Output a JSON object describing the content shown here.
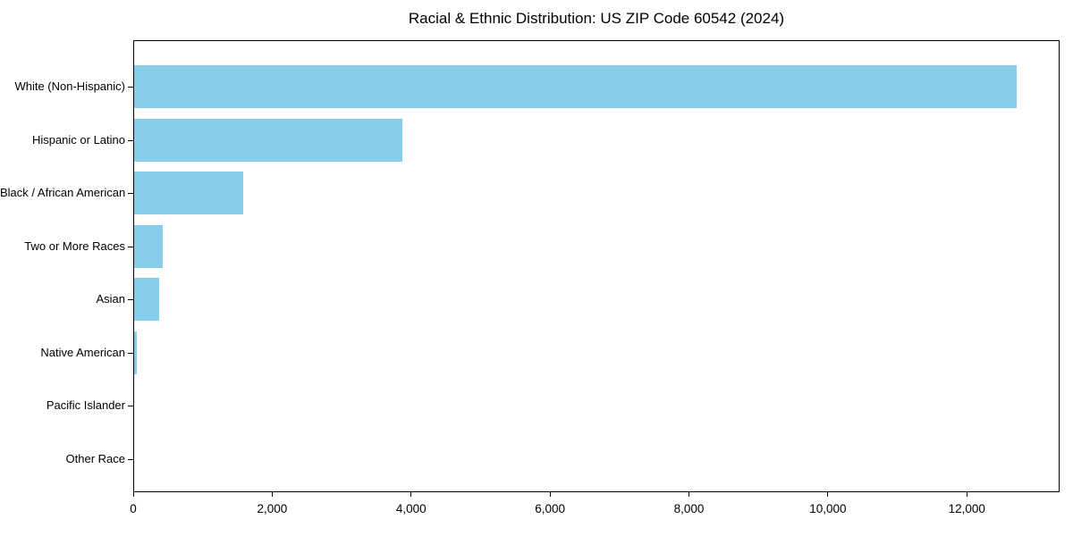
{
  "chart_data": {
    "type": "bar",
    "orientation": "horizontal",
    "title": "Racial & Ethnic Distribution: US ZIP Code 60542 (2024)",
    "xlabel": "",
    "ylabel": "",
    "categories": [
      "White (Non-Hispanic)",
      "Hispanic or Latino",
      "Black / African American",
      "Two or More Races",
      "Asian",
      "Native American",
      "Pacific Islander",
      "Other Race"
    ],
    "values": [
      12700,
      3860,
      1570,
      410,
      355,
      40,
      0,
      0
    ],
    "xlim": [
      0,
      13335
    ],
    "xticks": [
      {
        "value": 0,
        "label": "0"
      },
      {
        "value": 2000,
        "label": "2,000"
      },
      {
        "value": 4000,
        "label": "4,000"
      },
      {
        "value": 6000,
        "label": "6,000"
      },
      {
        "value": 8000,
        "label": "8,000"
      },
      {
        "value": 10000,
        "label": "10,000"
      },
      {
        "value": 12000,
        "label": "12,000"
      }
    ],
    "grid": false,
    "legend": null,
    "bar_color": "#87CEEB"
  },
  "colors": {
    "bar": "#87CEEB",
    "axis": "#000000",
    "text": "#000000",
    "background": "#FFFFFF"
  }
}
